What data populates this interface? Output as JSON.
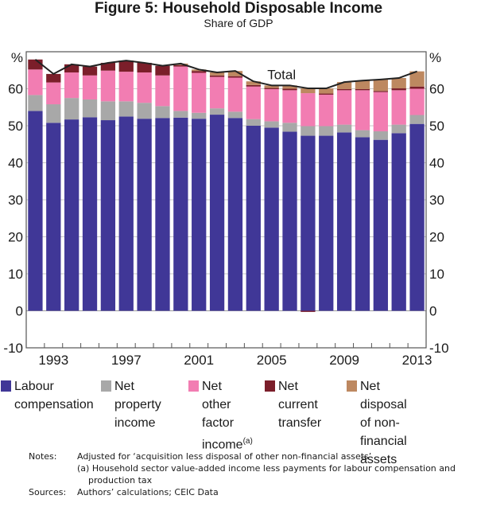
{
  "figure": {
    "title": "Figure 5: Household Disposable Income",
    "subtitle": "Share of GDP"
  },
  "chart_data": {
    "type": "bar",
    "stacked": true,
    "title": "Figure 5: Household Disposable Income",
    "subtitle": "Share of GDP",
    "xlabel": "",
    "ylabel": "%",
    "ylabel_right": "%",
    "ylim": [
      -10,
      70
    ],
    "yticks": [
      -10,
      0,
      10,
      20,
      30,
      40,
      50,
      60
    ],
    "grid": true,
    "categories": [
      "1992",
      "1993",
      "1994",
      "1995",
      "1996",
      "1997",
      "1998",
      "1999",
      "2000",
      "2001",
      "2002",
      "2003",
      "2004",
      "2005",
      "2006",
      "2007",
      "2008",
      "2009",
      "2010",
      "2011",
      "2012",
      "2013"
    ],
    "xtick_labels": [
      "1993",
      "1997",
      "2001",
      "2005",
      "2009",
      "2013"
    ],
    "series": [
      {
        "name": "Labour compensation",
        "color": "#403797",
        "values": [
          54.0,
          50.8,
          51.7,
          52.3,
          51.5,
          52.5,
          51.9,
          52.1,
          52.2,
          51.9,
          53.0,
          52.1,
          50.0,
          49.5,
          48.4,
          47.3,
          47.3,
          48.2,
          46.9,
          46.2,
          48.0,
          50.5
        ]
      },
      {
        "name": "Net property income",
        "color": "#a8a8a8",
        "values": [
          4.3,
          5.0,
          5.8,
          4.8,
          5.1,
          4.1,
          4.3,
          3.2,
          1.8,
          1.6,
          1.7,
          1.7,
          1.8,
          1.7,
          2.4,
          2.6,
          2.6,
          2.1,
          1.9,
          2.3,
          2.3,
          2.4
        ]
      },
      {
        "name": "Net other factor income(a)",
        "color": "#f27db2",
        "values": [
          6.9,
          5.9,
          6.9,
          6.5,
          8.3,
          8.0,
          8.2,
          8.3,
          12.0,
          10.8,
          8.5,
          9.2,
          8.8,
          8.7,
          8.8,
          8.9,
          8.5,
          9.3,
          10.8,
          10.6,
          9.3,
          7.1
        ]
      },
      {
        "name": "Net current transfer",
        "color": "#7b1e2a",
        "values": [
          2.7,
          2.3,
          2.2,
          2.4,
          2.1,
          3.0,
          2.6,
          2.6,
          0.4,
          0.5,
          0.4,
          0.4,
          0.4,
          0.3,
          0.4,
          -0.3,
          0.3,
          0.3,
          0.3,
          0.3,
          0.5,
          0.6
        ]
      },
      {
        "name": "Net disposal of non-financial assets",
        "color": "#bd8860",
        "values": [
          0,
          0,
          0,
          0,
          0,
          0,
          0,
          0,
          0.4,
          0.4,
          0.8,
          1.4,
          1.0,
          0.7,
          0.9,
          1.3,
          1.4,
          1.9,
          2.3,
          3.1,
          2.8,
          4.1
        ]
      }
    ],
    "line_series": {
      "name": "Total",
      "color": "#222222",
      "values": [
        67.9,
        64.0,
        66.6,
        66.0,
        67.0,
        67.6,
        67.0,
        66.2,
        66.8,
        65.2,
        64.4,
        64.8,
        62.0,
        60.9,
        60.9,
        60.1,
        60.1,
        61.8,
        62.2,
        62.5,
        62.9,
        64.7
      ]
    },
    "annotations": [
      {
        "text": "Total",
        "near": "2005"
      }
    ],
    "legend_position": "bottom"
  },
  "legend": [
    {
      "line1": "Labour",
      "line2": "compensation",
      "line3": "",
      "sup": "",
      "color": "#403797"
    },
    {
      "line1": "Net property",
      "line2": "income",
      "line3": "",
      "sup": "",
      "color": "#a8a8a8"
    },
    {
      "line1": "Net other",
      "line2": "factor",
      "line3": "income",
      "sup": "(a)",
      "color": "#f27db2"
    },
    {
      "line1": "Net current",
      "line2": "transfer",
      "line3": "",
      "sup": "",
      "color": "#7b1e2a"
    },
    {
      "line1": "Net disposal",
      "line2": "of non-financial",
      "line3": "assets",
      "sup": "",
      "color": "#bd8860"
    }
  ],
  "notes": {
    "notes_label": "Notes:",
    "note_1": "Adjusted for ‘acquisition less disposal of other non-financial assets’",
    "note_2a": "(a) Household sector value-added income less payments for labour compensation and",
    "note_2b": "production tax",
    "sources_label": "Sources:",
    "sources": "Authors’ calculations; CEIC Data"
  }
}
